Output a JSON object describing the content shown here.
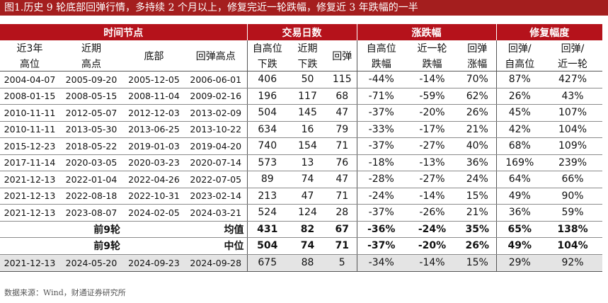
{
  "title": "图1.历史 9 轮底部回弹行情，多持续 2 个月以上，修复完近一轮跌幅，修复近 3 年跌幅的一半",
  "groups": [
    "时间节点",
    "交易日数",
    "涨跌幅",
    "修复幅度"
  ],
  "headers": [
    [
      "近3年",
      "高位"
    ],
    [
      "近期",
      "高点"
    ],
    [
      "底部",
      ""
    ],
    [
      "回弹高点",
      ""
    ],
    [
      "自高位",
      "下跌"
    ],
    [
      "近期",
      "下跌"
    ],
    [
      "回弹",
      ""
    ],
    [
      "自高位",
      "跌幅"
    ],
    [
      "近一轮",
      "跌幅"
    ],
    [
      "回弹",
      "涨幅"
    ],
    [
      "回弹/",
      "自高位"
    ],
    [
      "回弹/",
      "近一轮"
    ]
  ],
  "rows": [
    [
      "2004-04-07",
      "2005-09-20",
      "2005-12-05",
      "2006-06-01",
      "406",
      "50",
      "115",
      "-44%",
      "-14%",
      "70%",
      "87%",
      "427%"
    ],
    [
      "2008-01-15",
      "2008-05-15",
      "2008-11-04",
      "2009-02-16",
      "196",
      "117",
      "68",
      "-71%",
      "-59%",
      "62%",
      "26%",
      "43%"
    ],
    [
      "2010-11-11",
      "2012-05-07",
      "2012-12-03",
      "2013-02-09",
      "504",
      "145",
      "47",
      "-37%",
      "-20%",
      "26%",
      "45%",
      "107%"
    ],
    [
      "2010-11-11",
      "2013-05-30",
      "2013-06-25",
      "2013-10-22",
      "634",
      "16",
      "79",
      "-33%",
      "-17%",
      "21%",
      "42%",
      "104%"
    ],
    [
      "2015-12-23",
      "2018-05-22",
      "2019-01-03",
      "2019-04-20",
      "740",
      "154",
      "71",
      "-37%",
      "-27%",
      "40%",
      "68%",
      "109%"
    ],
    [
      "2017-11-14",
      "2020-03-05",
      "2020-03-23",
      "2020-07-14",
      "573",
      "13",
      "76",
      "-18%",
      "-13%",
      "36%",
      "169%",
      "239%"
    ],
    [
      "2021-12-13",
      "2022-01-04",
      "2022-04-26",
      "2022-07-05",
      "89",
      "74",
      "47",
      "-28%",
      "-27%",
      "24%",
      "64%",
      "66%"
    ],
    [
      "2021-12-13",
      "2022-08-18",
      "2022-10-31",
      "2023-02-14",
      "213",
      "47",
      "71",
      "-24%",
      "-14%",
      "15%",
      "49%",
      "90%"
    ],
    [
      "2021-12-13",
      "2023-08-07",
      "2024-02-05",
      "2024-03-21",
      "524",
      "124",
      "28",
      "-37%",
      "-26%",
      "21%",
      "36%",
      "59%"
    ]
  ],
  "summary_rows": [
    {
      "label_left": "前9轮",
      "label_right": "均值",
      "values": [
        "431",
        "82",
        "67",
        "-36%",
        "-24%",
        "35%",
        "65%",
        "138%"
      ]
    },
    {
      "label_left": "前9轮",
      "label_right": "中位",
      "values": [
        "504",
        "74",
        "71",
        "-37%",
        "-20%",
        "26%",
        "49%",
        "104%"
      ]
    }
  ],
  "current_row": [
    "2021-12-13",
    "2024-05-20",
    "2024-09-23",
    "2024-09-28",
    "675",
    "88",
    "5",
    "-34%",
    "-14%",
    "15%",
    "29%",
    "92%"
  ],
  "source": "数据来源：Wind，财通证券研究所",
  "colors": {
    "title_bg": "#a41e1e",
    "group_header_bg": "#b5121b",
    "current_row_bg": "#e4e4e4"
  }
}
